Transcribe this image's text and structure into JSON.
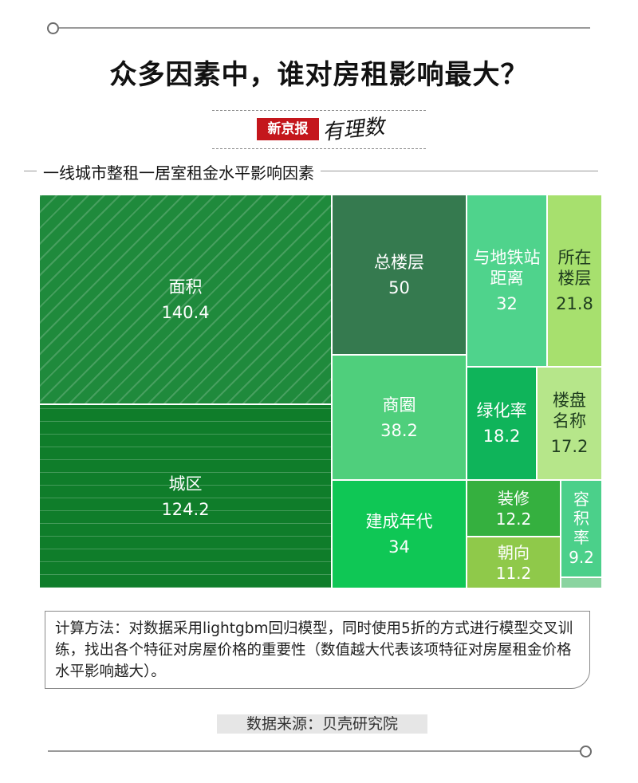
{
  "title": "众多因素中，谁对房租影响最大？",
  "brand": {
    "name": "新京报",
    "column": "有理数"
  },
  "note": "计算方法：对数据采用lightgbm回归模型，同时使用5折的方式进行模型交叉训练，找出各个特征对房屋价格的重要性（数值越大代表该项特征对房屋租金价格水平影响越大）。",
  "source": "数据来源：贝壳研究院",
  "chart_data": {
    "type": "treemap",
    "title": "一线城市整租一居室租金水平影响因素",
    "items": [
      {
        "name": "面积",
        "value": 140.4,
        "color": "#1f8a3c"
      },
      {
        "name": "城区",
        "value": 124.2,
        "color": "#0f7d2a"
      },
      {
        "name": "总楼层",
        "value": 50,
        "color": "#357a4f"
      },
      {
        "name": "商圈",
        "value": 38.2,
        "color": "#4fcf7c"
      },
      {
        "name": "建成年代",
        "value": 34,
        "color": "#0fc755"
      },
      {
        "name": "与地铁站距离",
        "value": 32,
        "color": "#4fd38c"
      },
      {
        "name": "所在楼层",
        "value": 21.8,
        "color": "#a7e06e"
      },
      {
        "name": "绿化率",
        "value": 18.2,
        "color": "#0fb45a"
      },
      {
        "name": "楼盘名称",
        "value": 17.2,
        "color": "#b6e68a"
      },
      {
        "name": "装修",
        "value": 12.2,
        "color": "#35b03f"
      },
      {
        "name": "朝向",
        "value": 11.2,
        "color": "#8fc94a"
      },
      {
        "name": "容积率",
        "value": 9.2,
        "color": "#4bd08a"
      },
      {
        "name": "",
        "value": 1.5,
        "color": "#8ad4a0"
      }
    ]
  }
}
